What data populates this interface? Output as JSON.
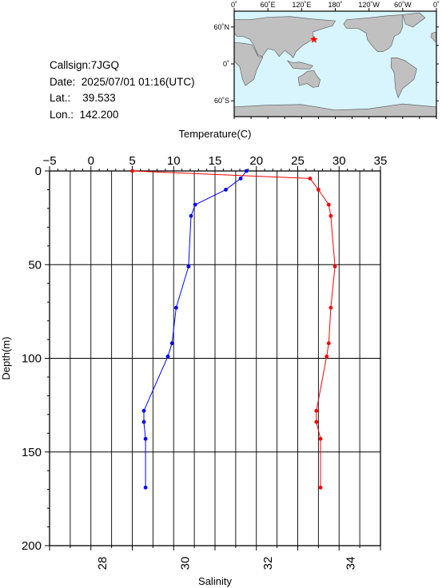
{
  "info": {
    "callsign_label": "Callsign:",
    "callsign": "7JGQ",
    "date_label": "Date:",
    "date": "2025/07/01 01:16(UTC)",
    "lat_label": "Lat.:",
    "lat": "39.533",
    "lon_label": "Lon.:",
    "lon": "142.200"
  },
  "map": {
    "top_tick_labels": [
      "0˚",
      "60˚E",
      "120˚E",
      "180˚",
      "120˚W",
      "60˚W",
      "0˚"
    ],
    "left_tick_labels": [
      "60˚N",
      "0˚",
      "60˚S"
    ],
    "ocean_color": "#d8f4fd",
    "land_color": "#c0c0c0",
    "marker_color": "#ff0000",
    "station_marker": "star-icon"
  },
  "chart_data": {
    "type": "line",
    "top_axis": {
      "label": "Temperature(C)",
      "range": [
        -5,
        35
      ],
      "ticks": [
        -5,
        0,
        5,
        10,
        15,
        20,
        25,
        30,
        35
      ]
    },
    "bottom_axis": {
      "label": "Salinity",
      "range": [
        27,
        35
      ],
      "ticks": [
        28,
        30,
        32,
        34
      ]
    },
    "y_axis": {
      "label": "Depth(m)",
      "range": [
        0,
        200
      ],
      "inverted": true,
      "ticks": [
        0,
        50,
        100,
        150,
        200
      ]
    },
    "grid": true,
    "series": [
      {
        "axis": "temperature",
        "color": "#0000ff",
        "points": [
          {
            "x": 18.8,
            "depth": 0
          },
          {
            "x": 18.1,
            "depth": 4
          },
          {
            "x": 16.3,
            "depth": 10
          },
          {
            "x": 12.6,
            "depth": 18
          },
          {
            "x": 12.1,
            "depth": 24
          },
          {
            "x": 11.8,
            "depth": 51
          },
          {
            "x": 10.3,
            "depth": 73
          },
          {
            "x": 9.8,
            "depth": 92
          },
          {
            "x": 9.3,
            "depth": 99
          },
          {
            "x": 6.4,
            "depth": 128
          },
          {
            "x": 6.4,
            "depth": 134
          },
          {
            "x": 6.6,
            "depth": 143
          },
          {
            "x": 6.6,
            "depth": 169
          }
        ]
      },
      {
        "axis": "salinity",
        "color": "#ff0000",
        "points": [
          {
            "x": 29.0,
            "depth": 0
          },
          {
            "x": 33.3,
            "depth": 4
          },
          {
            "x": 33.5,
            "depth": 10
          },
          {
            "x": 33.75,
            "depth": 18
          },
          {
            "x": 33.8,
            "depth": 24
          },
          {
            "x": 33.9,
            "depth": 51
          },
          {
            "x": 33.8,
            "depth": 73
          },
          {
            "x": 33.75,
            "depth": 92
          },
          {
            "x": 33.7,
            "depth": 99
          },
          {
            "x": 33.45,
            "depth": 128
          },
          {
            "x": 33.45,
            "depth": 134
          },
          {
            "x": 33.55,
            "depth": 143
          },
          {
            "x": 33.55,
            "depth": 169
          }
        ]
      }
    ]
  }
}
